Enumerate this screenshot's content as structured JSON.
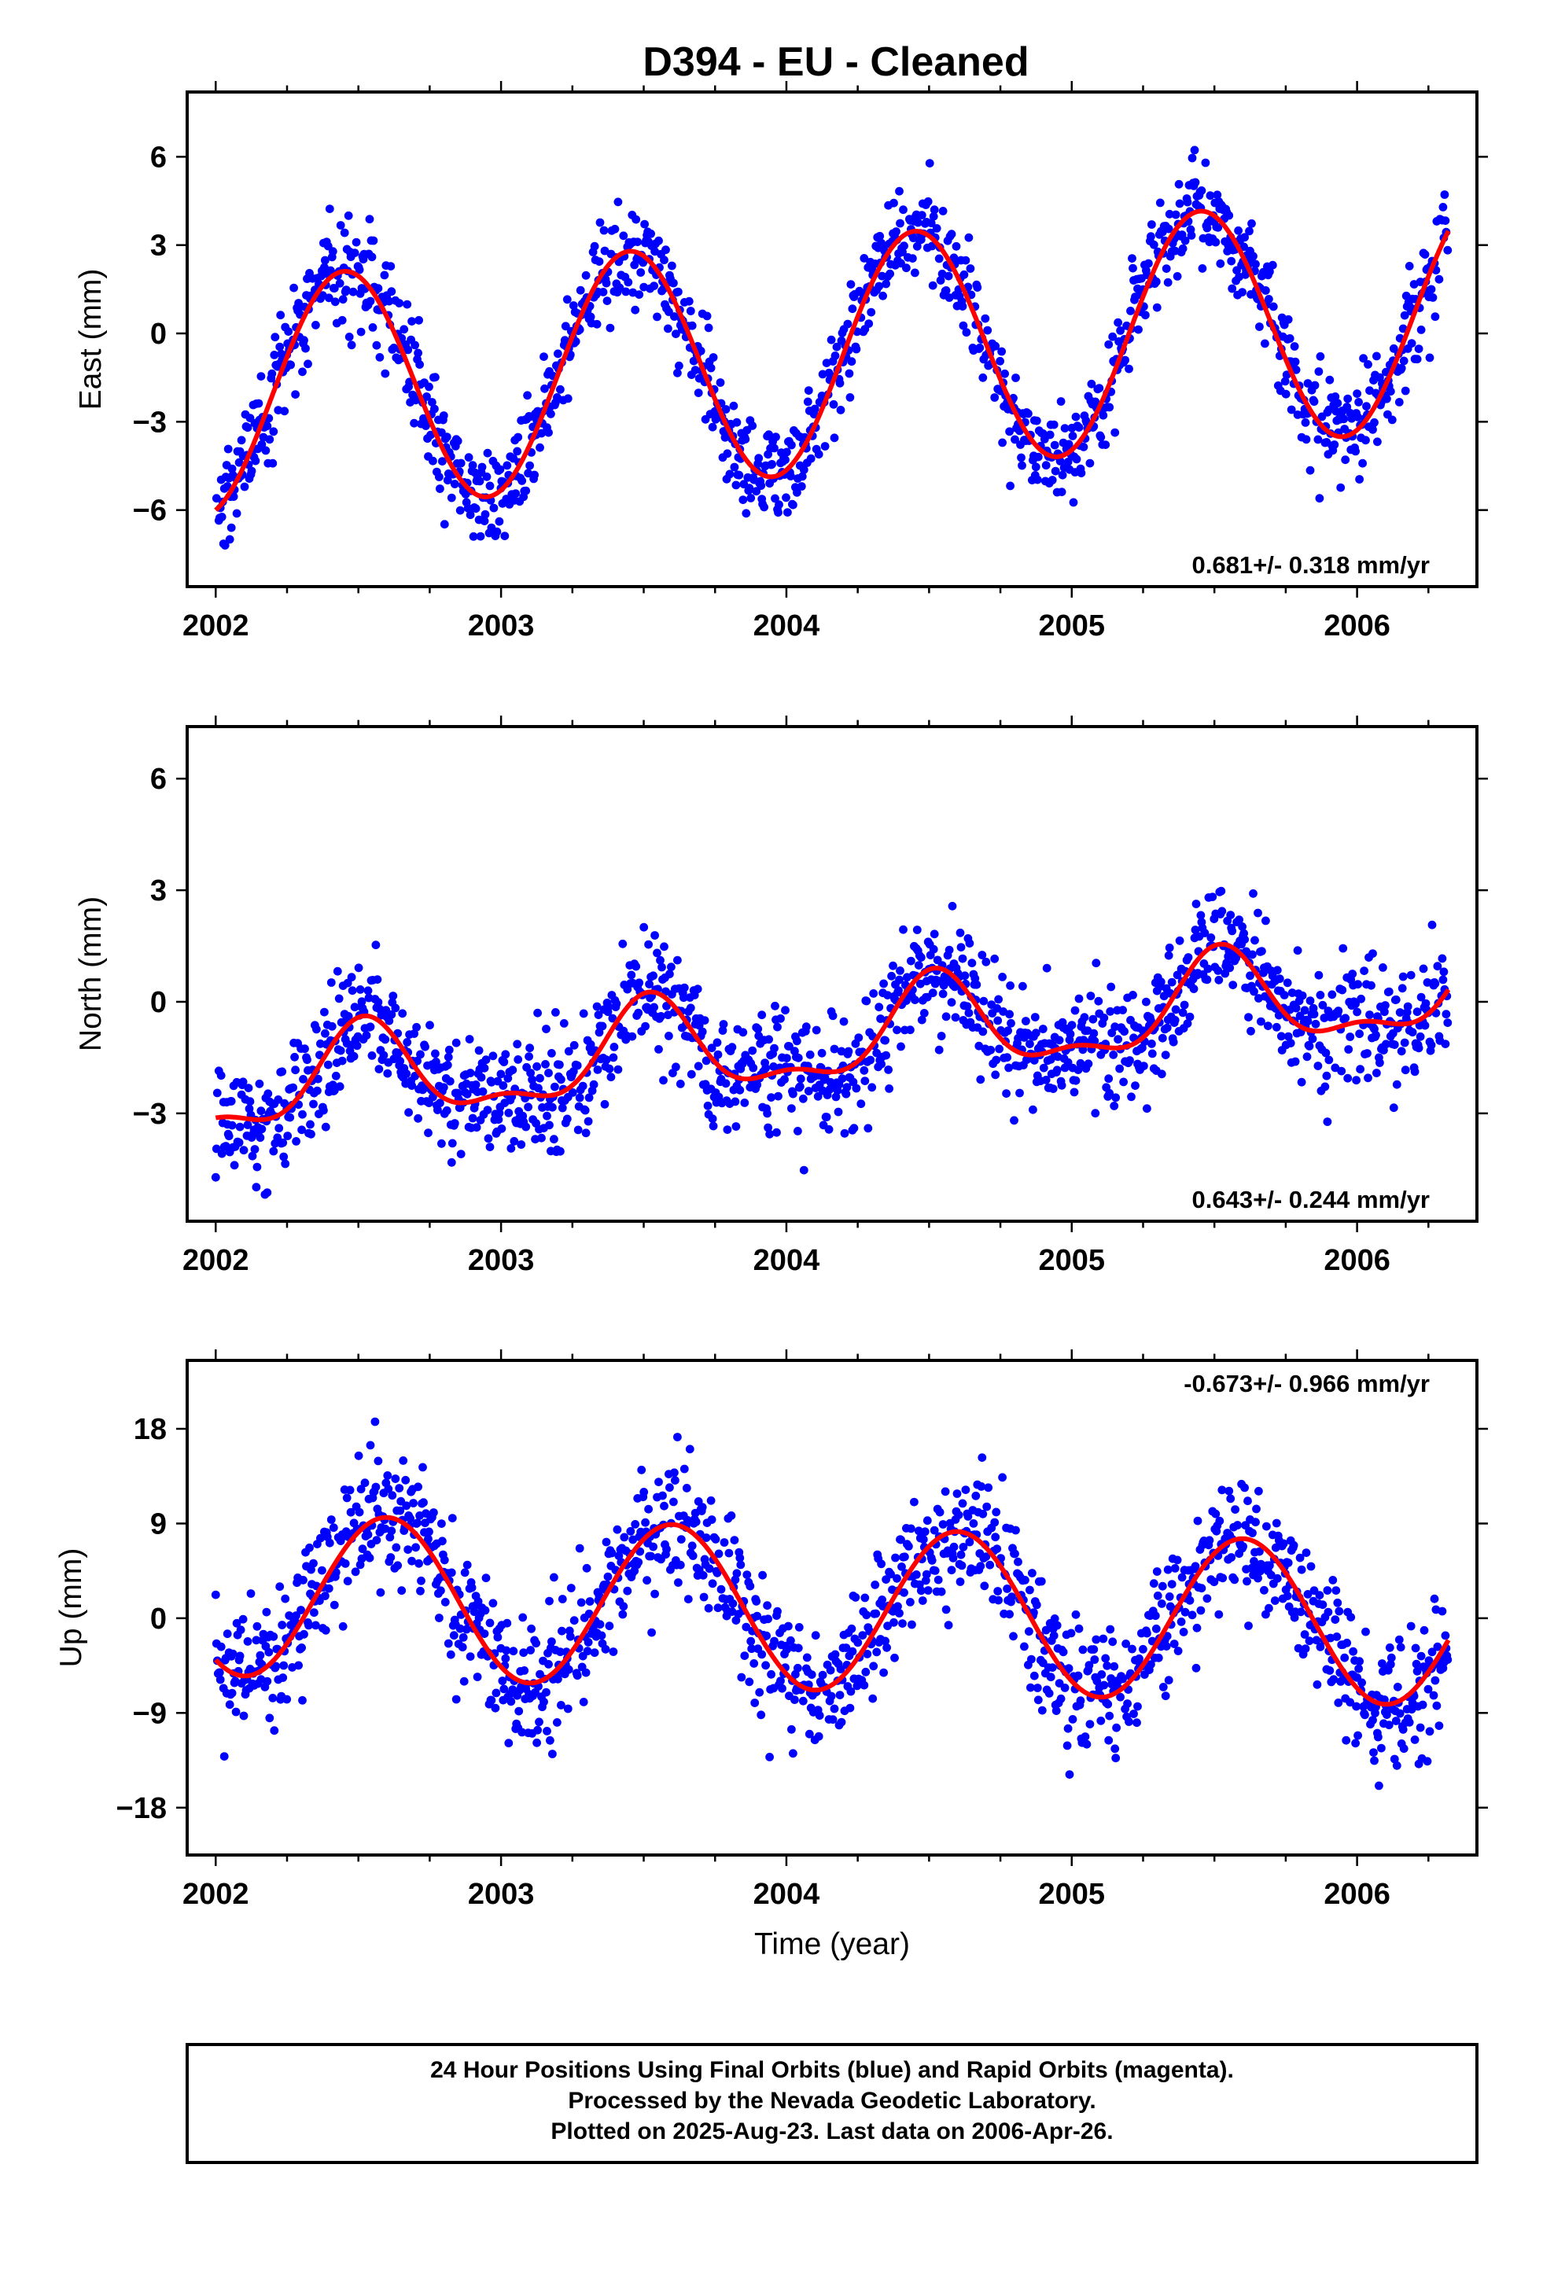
{
  "title": "D394  - EU - Cleaned",
  "chart_data": [
    {
      "type": "scatter",
      "component": "east",
      "ylabel": "East (mm)",
      "xlabel": "",
      "xlim": [
        2001.9,
        2006.42
      ],
      "ylim": [
        -8.6,
        8.2
      ],
      "x_ticks": [
        2002,
        2003,
        2004,
        2005,
        2006
      ],
      "y_ticks": [
        -6,
        -3,
        0,
        3,
        6
      ],
      "rate_label": "0.681+/- 0.318 mm/yr",
      "rate_position": "bottom-right",
      "start": 2002.0,
      "end": 2006.32,
      "model": {
        "offset": -0.7,
        "trend_mm_per_yr": 0.681,
        "annual_amplitude": 4.0,
        "annual_peak": 2002.45,
        "semiannual_amplitude": 0.0,
        "semiannual_peak": 2002.0
      },
      "noise_mm": 0.85,
      "series": [
        {
          "name": "24 Hour Positions Using Final Orbits",
          "color": "#0000ff",
          "role": "daily-positions"
        },
        {
          "name": "Model fit",
          "color": "#ff0000",
          "role": "model-fit"
        }
      ],
      "grid": false
    },
    {
      "type": "scatter",
      "component": "north",
      "ylabel": "North (mm)",
      "xlabel": "",
      "xlim": [
        2001.9,
        2006.42
      ],
      "ylim": [
        -5.9,
        7.4
      ],
      "x_ticks": [
        2002,
        2003,
        2004,
        2005,
        2006
      ],
      "y_ticks": [
        -3,
        0,
        3,
        6
      ],
      "rate_label": "0.643+/- 0.244 mm/yr",
      "rate_position": "bottom-right",
      "start": 2002.0,
      "end": 2006.32,
      "model": {
        "offset": -1.0,
        "trend_mm_per_yr": 0.643,
        "annual_amplitude": 1.2,
        "annual_peak": 2002.52,
        "semiannual_amplitude": 0.5,
        "semiannual_peak": 2002.52
      },
      "noise_mm": 0.8,
      "series": [
        {
          "name": "24 Hour Positions Using Final Orbits",
          "color": "#0000ff",
          "role": "daily-positions"
        },
        {
          "name": "Model fit",
          "color": "#ff0000",
          "role": "model-fit"
        }
      ],
      "grid": false
    },
    {
      "type": "scatter",
      "component": "up",
      "ylabel": "Up (mm)",
      "xlabel": "Time (year)",
      "xlim": [
        2001.9,
        2006.42
      ],
      "ylim": [
        -22.5,
        24.5
      ],
      "x_ticks": [
        2002,
        2003,
        2004,
        2005,
        2006
      ],
      "y_ticks": [
        -18,
        -9,
        0,
        9,
        18
      ],
      "rate_label": "-0.673+/- 0.966 mm/yr",
      "rate_position": "top-right",
      "start": 2002.0,
      "end": 2006.32,
      "model": {
        "offset": 0.8,
        "trend_mm_per_yr": -0.673,
        "annual_amplitude": 7.7,
        "annual_peak": 2002.6,
        "semiannual_amplitude": 0.0,
        "semiannual_peak": 2002.0
      },
      "noise_mm": 3.1,
      "series": [
        {
          "name": "24 Hour Positions Using Final Orbits",
          "color": "#0000ff",
          "role": "daily-positions"
        },
        {
          "name": "Model fit",
          "color": "#ff0000",
          "role": "model-fit"
        }
      ],
      "grid": false
    }
  ],
  "footer": {
    "line1": "24 Hour Positions Using Final Orbits (blue) and Rapid Orbits (magenta).",
    "line2": "Processed by the Nevada Geodetic Laboratory.",
    "line3": "Plotted on 2025-Aug-23. Last data on 2006-Apr-26."
  },
  "colors": {
    "points": "#0000ff",
    "model": "#ff0000",
    "frame": "#000000",
    "background": "#ffffff"
  }
}
